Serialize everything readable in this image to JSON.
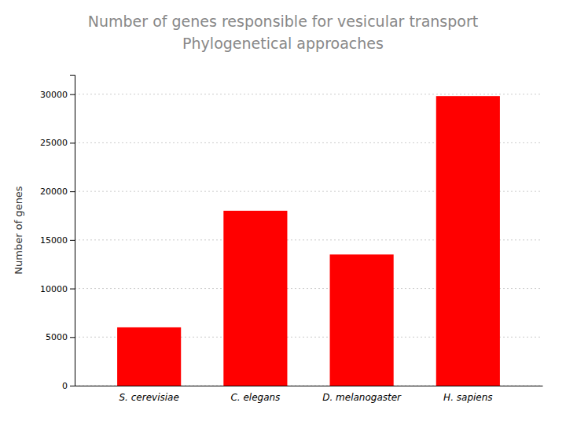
{
  "chart_data": {
    "type": "bar",
    "title": "Number of genes responsible for vesicular transport",
    "subtitle": "Phylogenetical approaches",
    "ylabel": "Number of genes",
    "categories": [
      "S. cerevisiae",
      "C. elegans",
      "D. melanogaster",
      "H. sapiens"
    ],
    "values": [
      6000,
      18000,
      13500,
      29800
    ],
    "color": "#ff0000",
    "ylim": [
      0,
      32000
    ],
    "yticks": [
      0,
      5000,
      10000,
      15000,
      20000,
      25000,
      30000
    ],
    "grid": true
  }
}
